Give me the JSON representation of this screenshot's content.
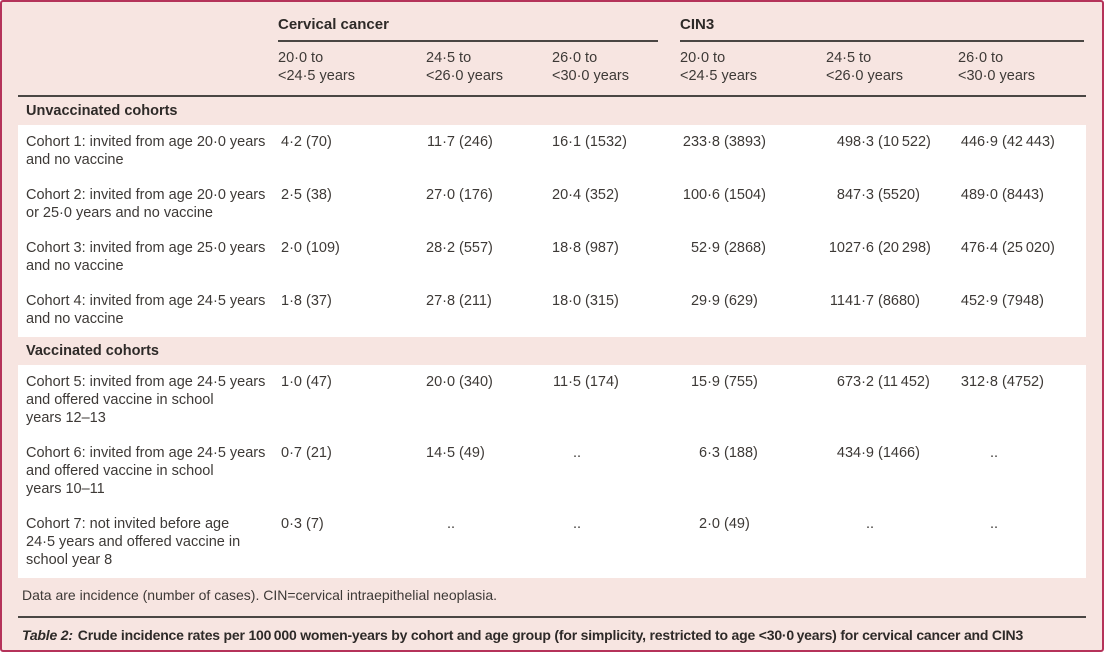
{
  "page": {
    "background": "#f7e5e1",
    "border_color": "#b5335a",
    "rule_color": "#4a4643",
    "text_color": "#3d3936",
    "heading_color": "#2e2a28"
  },
  "table": {
    "header": {
      "groups": [
        {
          "label": "Cervical cancer"
        },
        {
          "label": "CIN3"
        }
      ],
      "age_columns": [
        "20·0 to\n<24·5 years",
        "24·5 to\n<26·0 years",
        "26·0 to\n<30·0 years",
        "20·0 to\n<24·5 years",
        "24·5 to\n<26·0 years",
        "26·0 to\n<30·0 years"
      ]
    },
    "sections": [
      {
        "label": "Unvaccinated cohorts",
        "rows": [
          {
            "label": "Cohort 1: invited from age 20·0 years\nand no vaccine",
            "cells": [
              {
                "rate": "4·2",
                "count": "(70)"
              },
              {
                "rate": "11·7",
                "count": "(246)"
              },
              {
                "rate": "16·1",
                "count": "(1532)"
              },
              {
                "rate": "233·8",
                "count": "(3893)"
              },
              {
                "rate": "498·3",
                "count": "(10 522)"
              },
              {
                "rate": "446·9",
                "count": "(42 443)"
              }
            ]
          },
          {
            "label": "Cohort 2: invited from age 20·0 years\nor 25·0 years and no vaccine",
            "cells": [
              {
                "rate": "2·5",
                "count": "(38)"
              },
              {
                "rate": "27·0",
                "count": "(176)"
              },
              {
                "rate": "20·4",
                "count": "(352)"
              },
              {
                "rate": "100·6",
                "count": "(1504)"
              },
              {
                "rate": "847·3",
                "count": "(5520)"
              },
              {
                "rate": "489·0",
                "count": "(8443)"
              }
            ]
          },
          {
            "label": "Cohort 3: invited from age 25·0 years\nand no vaccine",
            "cells": [
              {
                "rate": "2·0",
                "count": "(109)"
              },
              {
                "rate": "28·2",
                "count": "(557)"
              },
              {
                "rate": "18·8",
                "count": "(987)"
              },
              {
                "rate": "52·9",
                "count": "(2868)"
              },
              {
                "rate": "1027·6",
                "count": "(20 298)"
              },
              {
                "rate": "476·4",
                "count": "(25 020)"
              }
            ]
          },
          {
            "label": "Cohort 4: invited from age 24·5 years\nand no vaccine",
            "cells": [
              {
                "rate": "1·8",
                "count": "(37)"
              },
              {
                "rate": "27·8",
                "count": "(211)"
              },
              {
                "rate": "18·0",
                "count": "(315)"
              },
              {
                "rate": "29·9",
                "count": "(629)"
              },
              {
                "rate": "1141·7",
                "count": "(8680)"
              },
              {
                "rate": "452·9",
                "count": "(7948)"
              }
            ]
          }
        ]
      },
      {
        "label": "Vaccinated cohorts",
        "rows": [
          {
            "label": "Cohort 5: invited from age 24·5 years\nand offered vaccine in school\nyears 12–13",
            "cells": [
              {
                "rate": "1·0",
                "count": "(47)"
              },
              {
                "rate": "20·0",
                "count": "(340)"
              },
              {
                "rate": "11·5",
                "count": "(174)"
              },
              {
                "rate": "15·9",
                "count": "(755)"
              },
              {
                "rate": "673·2",
                "count": "(11 452)"
              },
              {
                "rate": "312·8",
                "count": "(4752)"
              }
            ]
          },
          {
            "label": "Cohort 6: invited from age 24·5 years\nand offered vaccine in school\nyears 10–11",
            "cells": [
              {
                "rate": "0·7",
                "count": "(21)"
              },
              {
                "rate": "14·5",
                "count": "(49)"
              },
              {
                "rate": "..",
                "count": ""
              },
              {
                "rate": "6·3",
                "count": "(188)"
              },
              {
                "rate": "434·9",
                "count": "(1466)"
              },
              {
                "rate": "..",
                "count": ""
              }
            ]
          },
          {
            "label": "Cohort 7: not invited before age\n24·5 years and offered vaccine in\nschool year 8",
            "cells": [
              {
                "rate": "0·3",
                "count": "(7)"
              },
              {
                "rate": "..",
                "count": ""
              },
              {
                "rate": "..",
                "count": ""
              },
              {
                "rate": "2·0",
                "count": "(49)"
              },
              {
                "rate": "..",
                "count": ""
              },
              {
                "rate": "..",
                "count": ""
              }
            ]
          }
        ]
      }
    ],
    "footnote": "Data are incidence (number of cases). CIN=cervical intraepithelial neoplasia.",
    "caption": {
      "label": "Table 2:",
      "text": "Crude incidence rates per 100 000 women-years by cohort and age group (for simplicity, restricted to age <30·0 years) for cervical cancer and CIN3"
    }
  }
}
